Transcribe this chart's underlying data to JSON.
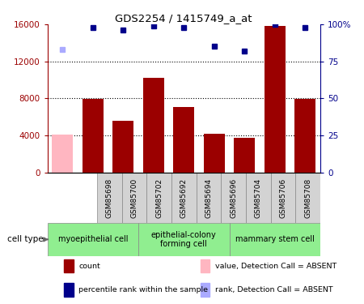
{
  "title": "GDS2254 / 1415749_a_at",
  "samples": [
    "GSM85698",
    "GSM85700",
    "GSM85702",
    "GSM85692",
    "GSM85694",
    "GSM85696",
    "GSM85704",
    "GSM85706",
    "GSM85708"
  ],
  "counts": [
    4100,
    7900,
    5600,
    10200,
    7100,
    4200,
    3700,
    15800,
    7900
  ],
  "absent_flags": [
    true,
    false,
    false,
    false,
    false,
    false,
    false,
    false,
    false
  ],
  "percentile_ranks": [
    83,
    98,
    96,
    99,
    98,
    85,
    82,
    100,
    98
  ],
  "absent_rank_flags": [
    true,
    false,
    false,
    false,
    false,
    false,
    false,
    false,
    false
  ],
  "ylim_left": [
    0,
    16000
  ],
  "ylim_right": [
    0,
    100
  ],
  "yticks_left": [
    0,
    4000,
    8000,
    12000,
    16000
  ],
  "yticks_right": [
    0,
    25,
    50,
    75,
    100
  ],
  "ytick_labels_right": [
    "0",
    "25",
    "50",
    "75",
    "100%"
  ],
  "bar_color_normal": "#9B0000",
  "bar_color_absent": "#FFB6C1",
  "dot_color_normal": "#00008B",
  "dot_color_absent": "#AAAAFF",
  "groups": [
    {
      "label": "myoepithelial cell",
      "start": 0,
      "end": 2,
      "color": "#90EE90"
    },
    {
      "label": "epithelial-colony\nforming cell",
      "start": 3,
      "end": 5,
      "color": "#90EE90"
    },
    {
      "label": "mammary stem cell",
      "start": 6,
      "end": 8,
      "color": "#90EE90"
    }
  ],
  "legend_items": [
    {
      "label": "count",
      "color": "#9B0000"
    },
    {
      "label": "percentile rank within the sample",
      "color": "#00008B"
    },
    {
      "label": "value, Detection Call = ABSENT",
      "color": "#FFB6C1"
    },
    {
      "label": "rank, Detection Call = ABSENT",
      "color": "#AAAAFF"
    }
  ],
  "cell_type_label": "cell type",
  "background_color": "#ffffff",
  "bar_color_left": "#9B0000",
  "bar_color_right": "#00008B",
  "grid_dotted_at": [
    4000,
    8000,
    12000
  ],
  "sample_box_color": "#D3D3D3"
}
